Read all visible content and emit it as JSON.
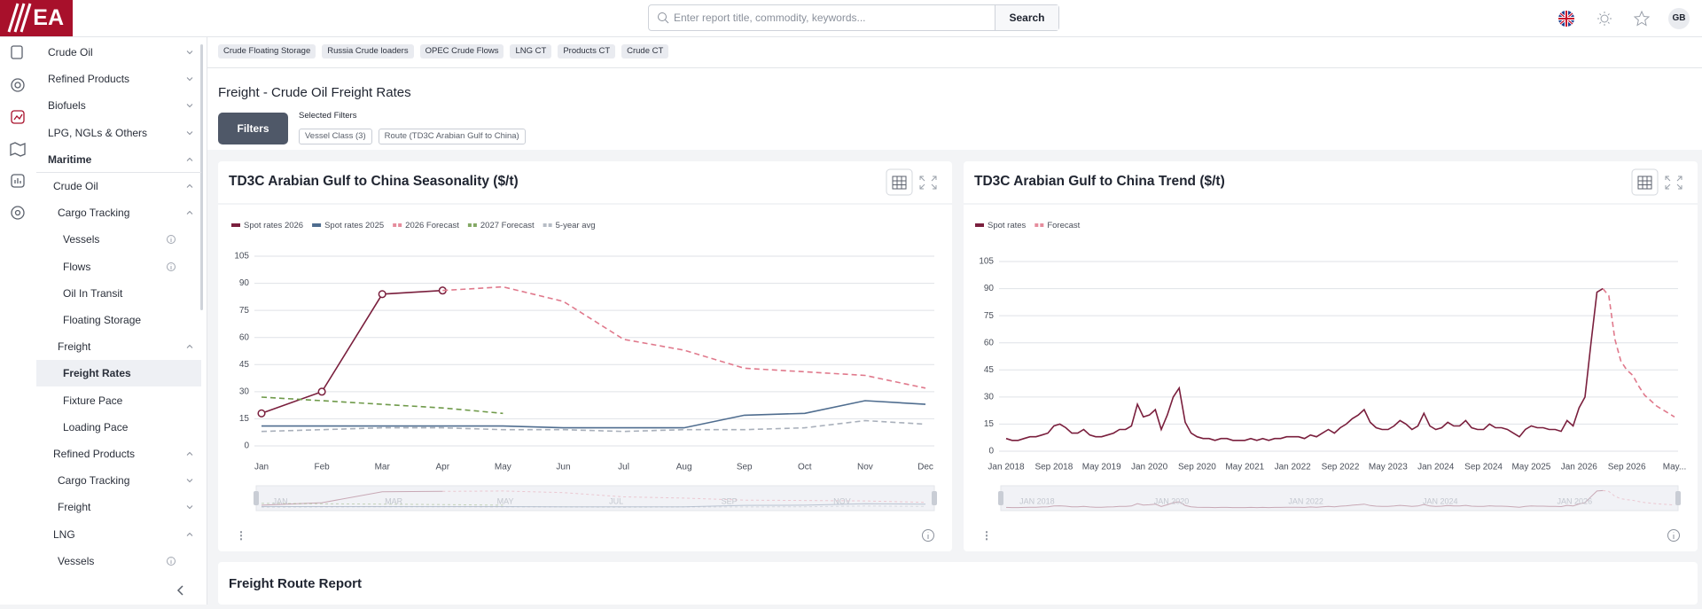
{
  "header": {
    "logo": "EA",
    "search_placeholder": "Enter report title, commodity, keywords...",
    "search_button": "Search",
    "avatar": "GB"
  },
  "sidebar": {
    "items": [
      {
        "label": "Crude Oil",
        "level": 0,
        "chevron": "down"
      },
      {
        "label": "Refined Products",
        "level": 0,
        "chevron": "down"
      },
      {
        "label": "Biofuels",
        "level": 0,
        "chevron": "down"
      },
      {
        "label": "LPG, NGLs & Others",
        "level": 0,
        "chevron": "down"
      },
      {
        "label": "Maritime",
        "level": 0,
        "chevron": "up",
        "bold": true
      },
      {
        "label": "Crude Oil",
        "level": 1,
        "chevron": "up"
      },
      {
        "label": "Cargo Tracking",
        "level": 2,
        "chevron": "up"
      },
      {
        "label": "Vessels",
        "level": 3,
        "info": true
      },
      {
        "label": "Flows",
        "level": 3,
        "info": true
      },
      {
        "label": "Oil In Transit",
        "level": 3
      },
      {
        "label": "Floating Storage",
        "level": 3
      },
      {
        "label": "Freight",
        "level": 2,
        "chevron": "up"
      },
      {
        "label": "Freight Rates",
        "level": 3,
        "active": true
      },
      {
        "label": "Fixture Pace",
        "level": 3
      },
      {
        "label": "Loading Pace",
        "level": 3
      },
      {
        "label": "Refined Products",
        "level": 1,
        "chevron": "up"
      },
      {
        "label": "Cargo Tracking",
        "level": 2,
        "chevron": "down"
      },
      {
        "label": "Freight",
        "level": 2,
        "chevron": "down"
      },
      {
        "label": "LNG",
        "level": 1,
        "chevron": "up"
      },
      {
        "label": "Vessels",
        "level": 2,
        "info": true
      }
    ]
  },
  "tabs": [
    "Crude Floating Storage",
    "Russia Crude loaders",
    "OPEC Crude Flows",
    "LNG CT",
    "Products CT",
    "Crude CT"
  ],
  "page_title": "Freight - Crude Oil Freight Rates",
  "filters": {
    "button": "Filters",
    "selected_label": "Selected Filters",
    "chips": [
      "Vessel Class (3)",
      "Route (TD3C Arabian Gulf to China)"
    ]
  },
  "chart_data": [
    {
      "type": "line",
      "title": "TD3C Arabian Gulf to China Seasonality ($/t)",
      "categories": [
        "Jan",
        "Feb",
        "Mar",
        "Apr",
        "May",
        "Jun",
        "Jul",
        "Aug",
        "Sep",
        "Oct",
        "Nov",
        "Dec"
      ],
      "series": [
        {
          "name": "Spot rates 2026",
          "color": "#7a1f3d",
          "markers": true,
          "values": [
            18,
            30,
            84,
            86,
            null,
            null,
            null,
            null,
            null,
            null,
            null,
            null
          ]
        },
        {
          "name": "Spot rates 2025",
          "color": "#4f6d8f",
          "values": [
            11,
            11,
            11,
            11,
            11,
            10,
            10,
            10,
            17,
            18,
            25,
            23
          ]
        },
        {
          "name": "2026 Forecast",
          "color": "#e0798c",
          "dashed": true,
          "values": [
            null,
            null,
            null,
            86,
            88,
            80,
            59,
            53,
            43,
            41,
            39,
            32
          ]
        },
        {
          "name": "2027 Forecast",
          "color": "#6f9a4a",
          "dashed": true,
          "values": [
            27,
            25,
            23,
            21,
            18,
            null,
            null,
            null,
            null,
            null,
            null,
            null
          ]
        },
        {
          "name": "5-year avg",
          "color": "#a9b0bb",
          "dashed": true,
          "values": [
            8,
            9,
            10,
            10,
            9,
            9,
            8,
            9,
            9,
            10,
            14,
            12
          ]
        }
      ],
      "ylim": [
        0,
        105
      ],
      "yticks": [
        0,
        15,
        30,
        45,
        60,
        75,
        90,
        105
      ],
      "grid": true,
      "navigator_labels": [
        "JAN",
        "MAR",
        "MAY",
        "JUL",
        "SEP",
        "NOV"
      ]
    },
    {
      "type": "line",
      "title": "TD3C Arabian Gulf to China Trend ($/t)",
      "categories": [
        "Jan 2018",
        null,
        null,
        null,
        null,
        null,
        null,
        null,
        "Sep 2018",
        null,
        null,
        null,
        null,
        null,
        null,
        null,
        "May 2019",
        null,
        null,
        null,
        null,
        null,
        null,
        null,
        "Jan 2020",
        null,
        null,
        null,
        null,
        null,
        null,
        null,
        "Sep 2020",
        null,
        null,
        null,
        null,
        null,
        null,
        null,
        "May 2021",
        null,
        null,
        null,
        null,
        null,
        null,
        null,
        "Jan 2022",
        null,
        null,
        null,
        null,
        null,
        null,
        null,
        "Sep 2022",
        null,
        null,
        null,
        null,
        null,
        null,
        null,
        "May 2023",
        null,
        null,
        null,
        null,
        null,
        null,
        null,
        "Jan 2024",
        null,
        null,
        null,
        null,
        null,
        null,
        null,
        "Sep 2024",
        null,
        null,
        null,
        null,
        null,
        null,
        null,
        "May 2025",
        null,
        null,
        null,
        null,
        null,
        null,
        null,
        "Jan 2026",
        null,
        null,
        null,
        null,
        null,
        null,
        null,
        "Sep 2026",
        null,
        null,
        null,
        null,
        null,
        null,
        null,
        "May..."
      ],
      "series": [
        {
          "name": "Spot rates",
          "color": "#7a1f3d",
          "values": [
            7,
            6,
            6,
            7,
            8,
            8,
            9,
            10,
            14,
            15,
            13,
            10,
            10,
            12,
            9,
            8,
            8,
            9,
            10,
            12,
            12,
            14,
            26,
            19,
            20,
            23,
            12,
            20,
            30,
            35,
            16,
            10,
            8,
            7,
            7,
            6,
            7,
            7,
            6,
            6,
            6,
            7,
            6,
            7,
            6,
            7,
            7,
            8,
            8,
            8,
            7,
            9,
            8,
            10,
            12,
            10,
            13,
            15,
            18,
            20,
            23,
            16,
            13,
            12,
            12,
            14,
            17,
            15,
            12,
            14,
            21,
            14,
            12,
            13,
            16,
            14,
            14,
            17,
            13,
            12,
            12,
            15,
            13,
            13,
            12,
            10,
            8,
            12,
            14,
            13,
            13,
            12,
            12,
            11,
            17,
            14,
            24,
            30,
            60,
            88,
            90,
            null,
            null,
            null,
            null,
            null,
            null,
            null,
            null,
            null,
            null,
            null,
            null
          ]
        },
        {
          "name": "Forecast",
          "color": "#e0798c",
          "dashed": true,
          "values": [
            null,
            null,
            null,
            null,
            null,
            null,
            null,
            null,
            null,
            null,
            null,
            null,
            null,
            null,
            null,
            null,
            null,
            null,
            null,
            null,
            null,
            null,
            null,
            null,
            null,
            null,
            null,
            null,
            null,
            null,
            null,
            null,
            null,
            null,
            null,
            null,
            null,
            null,
            null,
            null,
            null,
            null,
            null,
            null,
            null,
            null,
            null,
            null,
            null,
            null,
            null,
            null,
            null,
            null,
            null,
            null,
            null,
            null,
            null,
            null,
            null,
            null,
            null,
            null,
            null,
            null,
            null,
            null,
            null,
            null,
            null,
            null,
            null,
            null,
            null,
            null,
            null,
            null,
            null,
            null,
            null,
            null,
            null,
            null,
            null,
            null,
            null,
            null,
            null,
            null,
            null,
            null,
            null,
            null,
            null,
            null,
            null,
            null,
            null,
            null,
            90,
            86,
            62,
            50,
            45,
            42,
            36,
            31,
            28,
            25,
            23,
            21,
            19
          ]
        }
      ],
      "ylim": [
        0,
        105
      ],
      "yticks": [
        0,
        15,
        30,
        45,
        60,
        75,
        90,
        105
      ],
      "grid": true,
      "navigator_labels": [
        "JAN 2018",
        "JAN 2020",
        "JAN 2022",
        "JAN 2024",
        "JAN 2026"
      ]
    }
  ],
  "report": {
    "title": "Freight Route Report"
  }
}
